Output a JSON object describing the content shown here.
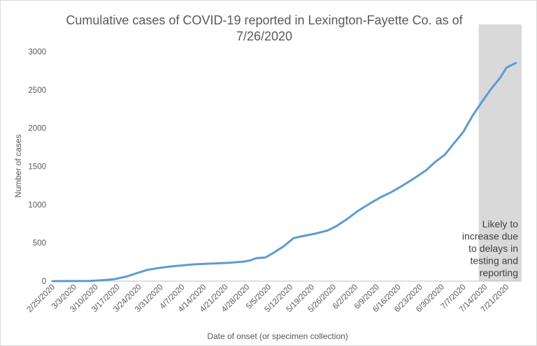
{
  "chart_data": {
    "type": "line",
    "title_lines": [
      "Cumulative cases of COVID-19 reported in Lexington-Fayette Co.  as of",
      "7/26/2020"
    ],
    "xlabel": "Date of onset (or specimen collection)",
    "ylabel": "Number of cases",
    "ylim": [
      0,
      3000
    ],
    "yticks": [
      0,
      500,
      1000,
      1500,
      2000,
      2500,
      3000
    ],
    "x_range": [
      "2020-02-25",
      "2020-07-25"
    ],
    "xtick_labels": [
      "2/25/2020",
      "3/3/2020",
      "3/10/2020",
      "3/17/2020",
      "3/24/2020",
      "3/31/2020",
      "4/7/2020",
      "4/14/2020",
      "4/21/2020",
      "4/28/2020",
      "5/5/2020",
      "5/12/2020",
      "5/19/2020",
      "5/26/2020",
      "6/2/2020",
      "6/9/2020",
      "6/16/2020",
      "6/23/2020",
      "6/30/2020",
      "7/7/2020",
      "7/14/2020",
      "7/21/2020"
    ],
    "xtick_dates": [
      "2020-02-25",
      "2020-03-03",
      "2020-03-10",
      "2020-03-17",
      "2020-03-24",
      "2020-03-31",
      "2020-04-07",
      "2020-04-14",
      "2020-04-21",
      "2020-04-28",
      "2020-05-05",
      "2020-05-12",
      "2020-05-19",
      "2020-05-26",
      "2020-06-02",
      "2020-06-09",
      "2020-06-16",
      "2020-06-23",
      "2020-06-30",
      "2020-07-07",
      "2020-07-14",
      "2020-07-21"
    ],
    "grid": false,
    "line_color": "#5b9bd5",
    "shade_color": "#d9d9d9",
    "shaded_region": [
      "2020-07-12",
      "2020-07-25"
    ],
    "annotation_lines": [
      "Likely to",
      "increase due",
      "to delays in",
      "testing and",
      "reporting"
    ],
    "series": [
      {
        "x": [
          "2020-02-25",
          "2020-03-08",
          "2020-03-12",
          "2020-03-16",
          "2020-03-20",
          "2020-03-23",
          "2020-03-27",
          "2020-03-31",
          "2020-04-04",
          "2020-04-07",
          "2020-04-11",
          "2020-04-17",
          "2020-04-22",
          "2020-04-27",
          "2020-04-29",
          "2020-05-01",
          "2020-05-04",
          "2020-05-07",
          "2020-05-10",
          "2020-05-13",
          "2020-05-15",
          "2020-05-20",
          "2020-05-24",
          "2020-05-27",
          "2020-05-30",
          "2020-06-03",
          "2020-06-07",
          "2020-06-10",
          "2020-06-14",
          "2020-06-17",
          "2020-06-21",
          "2020-06-25",
          "2020-06-28",
          "2020-07-01",
          "2020-07-04",
          "2020-07-07",
          "2020-07-10",
          "2020-07-13",
          "2020-07-16",
          "2020-07-19",
          "2020-07-21",
          "2020-07-24"
        ],
        "y": [
          0,
          2,
          12,
          25,
          60,
          100,
          150,
          175,
          195,
          205,
          220,
          230,
          240,
          255,
          270,
          300,
          310,
          380,
          460,
          560,
          580,
          620,
          660,
          720,
          800,
          920,
          1020,
          1090,
          1170,
          1240,
          1340,
          1450,
          1560,
          1650,
          1800,
          1950,
          2160,
          2340,
          2510,
          2660,
          2790,
          2850
        ]
      }
    ]
  }
}
